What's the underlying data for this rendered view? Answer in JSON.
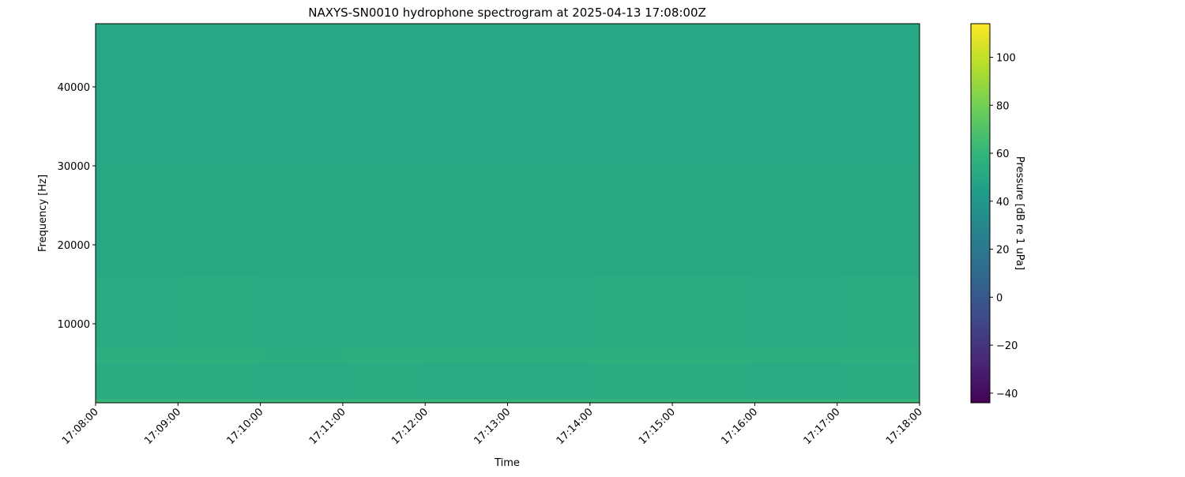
{
  "chart_data": {
    "type": "heatmap",
    "title": "NAXYS-SN0010 hydrophone spectrogram at 2025-04-13 17:08:00Z",
    "xlabel": "Time",
    "ylabel": "Frequency [Hz]",
    "colorbar_label": "Pressure [dB re 1 uPa]",
    "colormap": "viridis",
    "clim": [
      -44,
      114
    ],
    "xlim": [
      "17:08:00",
      "17:18:00"
    ],
    "ylim": [
      0,
      48000
    ],
    "x_ticks": [
      "17:08:00",
      "17:09:00",
      "17:10:00",
      "17:11:00",
      "17:12:00",
      "17:13:00",
      "17:14:00",
      "17:15:00",
      "17:16:00",
      "17:17:00",
      "17:18:00"
    ],
    "y_ticks": [
      10000,
      20000,
      30000,
      40000
    ],
    "colorbar_ticks": [
      -40,
      -20,
      0,
      20,
      40,
      60,
      80,
      100
    ],
    "freq_edges": [
      0,
      500,
      5000,
      7000,
      16000,
      30000,
      48000
    ],
    "z": [
      [
        62,
        62,
        61,
        62,
        62,
        61,
        62,
        62,
        61,
        62
      ],
      [
        53,
        53,
        52,
        53,
        52,
        52,
        53,
        53,
        52,
        53
      ],
      [
        55,
        56,
        54,
        55,
        55,
        55,
        56,
        56,
        55,
        55
      ],
      [
        52,
        53,
        52,
        52,
        52,
        52,
        53,
        53,
        52,
        53
      ],
      [
        51,
        51,
        51,
        51,
        51,
        51,
        51,
        51,
        51,
        51
      ],
      [
        50,
        50,
        50,
        50,
        50,
        50,
        50,
        50,
        50,
        50
      ]
    ]
  }
}
